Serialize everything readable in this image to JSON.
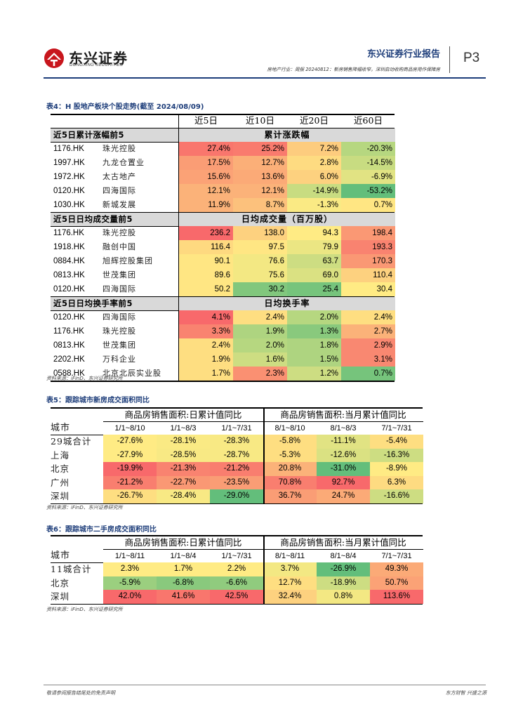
{
  "header": {
    "logo_cn": "东兴证券",
    "logo_en": "DONGXING SECURITIES",
    "report_title": "东兴证券行业报告",
    "subtitle": "房地产行业：周报 20240812：新房销售降幅收窄，深圳启动收购商品房用作保障房",
    "page": "P3"
  },
  "colors": {
    "brand_blue": "#1d3d7a",
    "red": "#f8696b",
    "orange": "#fbaa77",
    "yellow": "#ffeb84",
    "light_green": "#c1da81",
    "green": "#63be7b",
    "header_gray": "#d9d9d9"
  },
  "table4": {
    "caption": "表4：H 股地产板块个股走势(截至 2024/08/09)",
    "col_headers": [
      "近5日",
      "近10日",
      "近20日",
      "近60日"
    ],
    "sections": [
      {
        "label": "近5日累计涨幅前5",
        "title": "累计涨跌幅",
        "rows": [
          {
            "code": "1176.HK",
            "name": "珠光控股",
            "values": [
              "27.4%",
              "25.2%",
              "7.2%",
              "-20.3%"
            ],
            "levels": [
              0.95,
              0.93,
              0.62,
              0.22
            ]
          },
          {
            "code": "1997.HK",
            "name": "九龙仓置业",
            "values": [
              "17.5%",
              "12.7%",
              "2.8%",
              "-14.5%"
            ],
            "levels": [
              0.8,
              0.73,
              0.56,
              0.28
            ]
          },
          {
            "code": "1972.HK",
            "name": "太古地产",
            "values": [
              "15.6%",
              "13.6%",
              "6.0%",
              "-6.9%"
            ],
            "levels": [
              0.78,
              0.75,
              0.6,
              0.38
            ]
          },
          {
            "code": "0120.HK",
            "name": "四海国际",
            "values": [
              "12.1%",
              "12.1%",
              "-14.9%",
              "-53.2%"
            ],
            "levels": [
              0.72,
              0.72,
              0.28,
              0.0
            ]
          },
          {
            "code": "1030.HK",
            "name": "新城发展",
            "values": [
              "11.9%",
              "8.7%",
              "-1.3%",
              "0.7%"
            ],
            "levels": [
              0.72,
              0.66,
              0.48,
              0.52
            ]
          }
        ]
      },
      {
        "label": "近5日日均成交量前5",
        "title": "日均成交量（百万股）",
        "rows": [
          {
            "code": "1176.HK",
            "name": "珠光控股",
            "values": [
              "236.2",
              "138.0",
              "94.3",
              "198.4"
            ],
            "levels": [
              1.0,
              0.6,
              0.5,
              0.82
            ]
          },
          {
            "code": "1918.HK",
            "name": "融创中国",
            "values": [
              "116.4",
              "97.5",
              "79.9",
              "193.3"
            ],
            "levels": [
              0.57,
              0.52,
              0.42,
              0.9
            ]
          },
          {
            "code": "0884.HK",
            "name": "旭辉控股集团",
            "values": [
              "90.1",
              "76.6",
              "63.7",
              "170.3"
            ],
            "levels": [
              0.52,
              0.45,
              0.3,
              0.82
            ]
          },
          {
            "code": "0813.HK",
            "name": "世茂集团",
            "values": [
              "89.6",
              "75.6",
              "69.0",
              "110.4"
            ],
            "levels": [
              0.52,
              0.45,
              0.35,
              0.6
            ]
          },
          {
            "code": "0120.HK",
            "name": "四海国际",
            "values": [
              "50.2",
              "30.2",
              "25.4",
              "30.4"
            ],
            "levels": [
              0.52,
              0.08,
              0.05,
              0.5
            ]
          }
        ]
      },
      {
        "label": "近5日日均换手率前5",
        "title": "日均换手率",
        "rows": [
          {
            "code": "0120.HK",
            "name": "四海国际",
            "values": [
              "4.1%",
              "2.4%",
              "2.0%",
              "2.4%"
            ],
            "levels": [
              1.0,
              0.55,
              0.22,
              0.55
            ]
          },
          {
            "code": "1176.HK",
            "name": "珠光控股",
            "values": [
              "3.3%",
              "1.9%",
              "1.3%",
              "2.7%"
            ],
            "levels": [
              0.9,
              0.2,
              0.1,
              0.72
            ]
          },
          {
            "code": "0813.HK",
            "name": "世茂集团",
            "values": [
              "2.4%",
              "2.0%",
              "1.8%",
              "2.9%"
            ],
            "levels": [
              0.55,
              0.22,
              0.2,
              0.88
            ]
          },
          {
            "code": "2202.HK",
            "name": "万科企业",
            "values": [
              "1.9%",
              "1.6%",
              "1.5%",
              "3.1%"
            ],
            "levels": [
              0.55,
              0.3,
              0.2,
              0.88
            ]
          },
          {
            "code": "0588.HK",
            "name": "北京北辰实业股",
            "values": [
              "1.7%",
              "2.3%",
              "1.2%",
              "0.7%"
            ],
            "levels": [
              0.55,
              0.85,
              0.3,
              0.05
            ]
          }
        ]
      }
    ],
    "source": "资料来源：iFinD、东兴证券研究所"
  },
  "table5": {
    "caption": "表5：跟踪城市新房成交面积同比",
    "group1": "商品房销售面积:日累计值同比",
    "group2": "商品房销售面积:当月累计值同比",
    "city_header": "城市",
    "col_headers": [
      "1/1~8/10",
      "1/1~8/3",
      "1/1~7/31",
      "8/1~8/10",
      "8/1~8/3",
      "7/1~7/31"
    ],
    "rows": [
      {
        "city": "29城合计",
        "values": [
          "-27.6%",
          "-28.1%",
          "-28.3%",
          "-5.8%",
          "-11.1%",
          "-5.4%"
        ],
        "levels": [
          0.5,
          0.48,
          0.47,
          0.55,
          0.38,
          0.55
        ]
      },
      {
        "city": "上海",
        "values": [
          "-27.9%",
          "-28.5%",
          "-28.7%",
          "-5.3%",
          "-12.6%",
          "-16.3%"
        ],
        "levels": [
          0.5,
          0.47,
          0.47,
          0.55,
          0.35,
          0.3
        ]
      },
      {
        "city": "北京",
        "values": [
          "-19.9%",
          "-21.3%",
          "-21.2%",
          "20.8%",
          "-31.0%",
          "-8.9%"
        ],
        "levels": [
          1.0,
          0.9,
          0.92,
          0.72,
          0.0,
          0.5
        ]
      },
      {
        "city": "广州",
        "values": [
          "-21.2%",
          "-22.7%",
          "-23.5%",
          "70.8%",
          "92.7%",
          "6.3%"
        ],
        "levels": [
          0.92,
          0.82,
          0.8,
          0.92,
          1.0,
          0.56
        ]
      },
      {
        "city": "深圳",
        "values": [
          "-26.7%",
          "-28.4%",
          "-29.0%",
          "36.7%",
          "24.7%",
          "-16.6%"
        ],
        "levels": [
          0.55,
          0.47,
          0.0,
          0.8,
          0.75,
          0.3
        ]
      }
    ],
    "source": "资料来源：iFinD、东兴证券研究所"
  },
  "table6": {
    "caption": "表6：跟踪城市二手房成交面积同比",
    "group1": "商品房销售面积:日累计值同比",
    "group2": "商品房销售面积:当月累计值同比",
    "city_header": "城市",
    "col_headers": [
      "1/1~8/11",
      "1/1~8/4",
      "1/1~7/31",
      "8/1~8/11",
      "8/1~8/4",
      "7/1~7/31"
    ],
    "rows": [
      {
        "city": "11城合计",
        "values": [
          "2.3%",
          "1.7%",
          "2.2%",
          "3.7%",
          "-26.9%",
          "49.3%"
        ],
        "levels": [
          0.5,
          0.5,
          0.5,
          0.45,
          0.0,
          0.75
        ]
      },
      {
        "city": "北京",
        "values": [
          "-5.9%",
          "-6.8%",
          "-6.6%",
          "12.7%",
          "-18.9%",
          "50.7%"
        ],
        "levels": [
          0.15,
          0.1,
          0.12,
          0.55,
          0.3,
          0.78
        ]
      },
      {
        "city": "深圳",
        "values": [
          "42.0%",
          "41.6%",
          "42.5%",
          "32.4%",
          "0.8%",
          "113.6%"
        ],
        "levels": [
          1.0,
          0.95,
          1.0,
          0.6,
          0.45,
          1.0
        ]
      }
    ],
    "source": "资料来源：iFinD、东兴证券研究所"
  },
  "footer": {
    "left": "敬请参阅报告结尾处的免责声明",
    "right": "东方财智  兴盛之源"
  }
}
